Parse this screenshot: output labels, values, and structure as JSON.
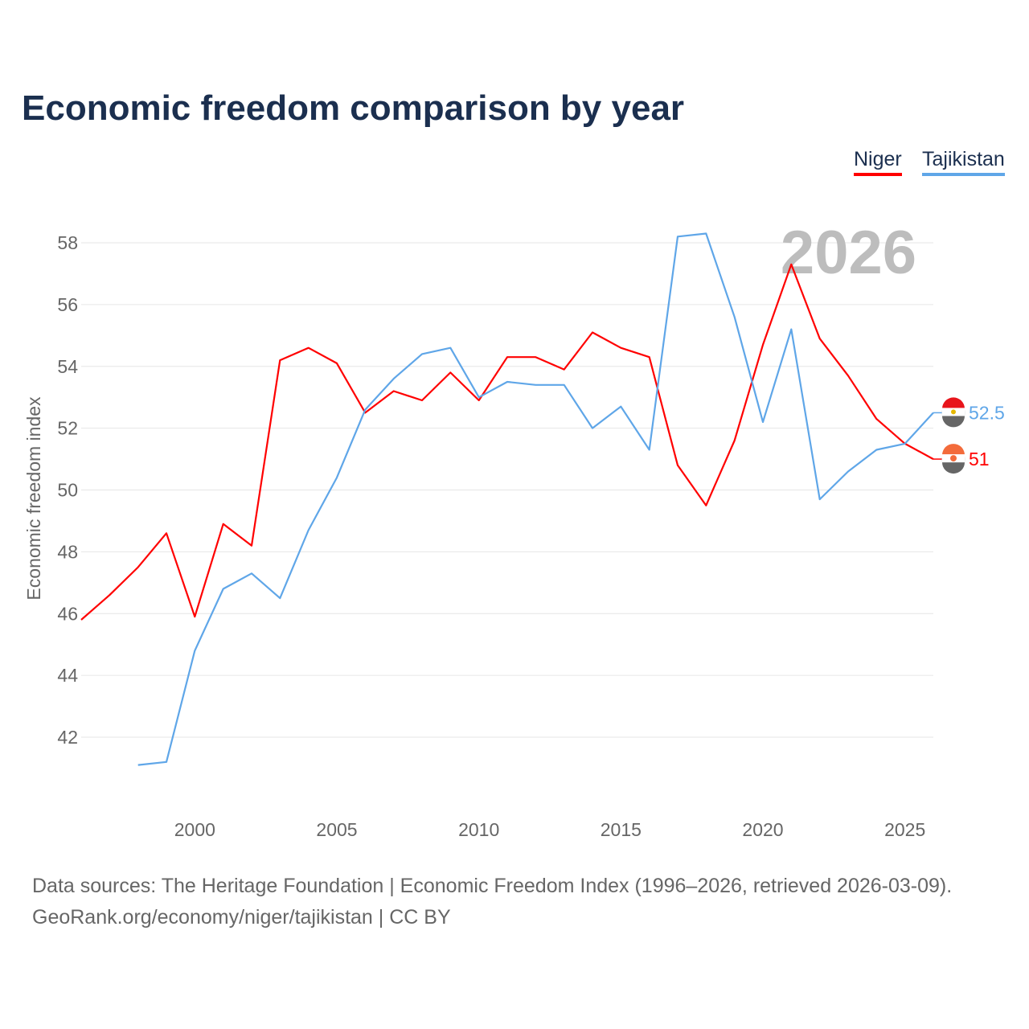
{
  "title": "Economic freedom comparison by year",
  "chart_data": {
    "type": "line",
    "title": "Economic freedom comparison by year",
    "xlabel": "",
    "ylabel": "Economic freedom index",
    "xlim": [
      1996,
      2026
    ],
    "ylim": [
      40,
      60
    ],
    "xticks": [
      2000,
      2005,
      2010,
      2015,
      2020,
      2025
    ],
    "yticks": [
      42,
      44,
      46,
      48,
      50,
      52,
      54,
      56,
      58
    ],
    "grid": true,
    "legend_position": "top-right",
    "year_watermark": "2026",
    "series": [
      {
        "name": "Niger",
        "color": "#ff0000",
        "end_label": "51",
        "x": [
          1996,
          1997,
          1998,
          1999,
          2000,
          2001,
          2002,
          2003,
          2004,
          2005,
          2006,
          2007,
          2008,
          2009,
          2010,
          2011,
          2012,
          2013,
          2014,
          2015,
          2016,
          2017,
          2018,
          2019,
          2020,
          2021,
          2022,
          2023,
          2024,
          2025,
          2026
        ],
        "values": [
          45.8,
          46.6,
          47.5,
          48.6,
          45.9,
          48.9,
          48.2,
          54.2,
          54.6,
          54.1,
          52.5,
          53.2,
          52.9,
          53.8,
          52.9,
          54.3,
          54.3,
          53.9,
          55.1,
          54.6,
          54.3,
          50.8,
          49.5,
          51.6,
          54.7,
          57.3,
          54.9,
          53.7,
          52.3,
          51.5,
          51.0
        ]
      },
      {
        "name": "Tajikistan",
        "color": "#5fa6e8",
        "end_label": "52.5",
        "x": [
          1998,
          1999,
          2000,
          2001,
          2002,
          2003,
          2004,
          2005,
          2006,
          2007,
          2008,
          2009,
          2010,
          2011,
          2012,
          2013,
          2014,
          2015,
          2016,
          2017,
          2018,
          2019,
          2020,
          2021,
          2022,
          2023,
          2024,
          2025,
          2026
        ],
        "values": [
          41.1,
          41.2,
          44.8,
          46.8,
          47.3,
          46.5,
          48.7,
          50.4,
          52.6,
          53.6,
          54.4,
          54.6,
          53.0,
          53.5,
          53.4,
          53.4,
          52.0,
          52.7,
          51.3,
          58.2,
          58.3,
          55.6,
          52.2,
          55.2,
          49.7,
          50.6,
          51.3,
          51.5,
          52.5
        ]
      }
    ]
  },
  "source_line1": "Data sources: The Heritage Foundation | Economic Freedom Index (1996–2026, retrieved 2026-03-09).",
  "source_line2": "GeoRank.org/economy/niger/tajikistan | CC BY"
}
